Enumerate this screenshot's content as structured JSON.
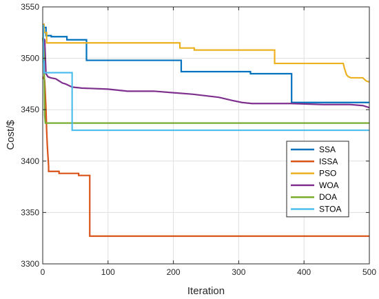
{
  "chart_data": {
    "type": "line",
    "title": "",
    "xlabel": "Iteration",
    "ylabel": "Cost/$",
    "xlim": [
      0,
      500
    ],
    "ylim": [
      3300,
      3550
    ],
    "xticks": [
      0,
      100,
      200,
      300,
      400,
      500
    ],
    "yticks": [
      3300,
      3350,
      3400,
      3450,
      3500,
      3550
    ],
    "grid": true,
    "legend_position": "right",
    "series": [
      {
        "name": "SSA",
        "color": "#0072BD",
        "x": [
          0,
          2,
          2,
          5,
          5,
          13,
          13,
          37,
          37,
          67,
          67,
          212,
          212,
          318,
          318,
          381,
          381,
          500
        ],
        "y": [
          3533,
          3533,
          3530,
          3530,
          3522,
          3522,
          3521,
          3521,
          3518,
          3518,
          3498,
          3498,
          3487,
          3487,
          3485,
          3485,
          3457,
          3457
        ]
      },
      {
        "name": "ISSA",
        "color": "#D95319",
        "x": [
          0,
          2,
          3,
          4,
          5,
          6,
          7,
          9,
          9,
          25,
          25,
          55,
          55,
          72,
          72,
          500
        ],
        "y": [
          3480,
          3482,
          3478,
          3465,
          3450,
          3430,
          3415,
          3395,
          3390,
          3390,
          3388,
          3388,
          3386,
          3386,
          3327,
          3327
        ]
      },
      {
        "name": "PSO",
        "color": "#EDB120",
        "x": [
          0,
          2,
          2,
          6,
          6,
          210,
          210,
          232,
          232,
          355,
          355,
          460,
          462,
          465,
          468,
          472,
          490,
          495,
          500
        ],
        "y": [
          3533,
          3533,
          3525,
          3525,
          3515,
          3515,
          3510,
          3510,
          3508,
          3508,
          3495,
          3495,
          3490,
          3484,
          3482,
          3481,
          3481,
          3478,
          3477
        ]
      },
      {
        "name": "WOA",
        "color": "#7E2F8E",
        "x": [
          0,
          3,
          5,
          8,
          12,
          20,
          25,
          30,
          35,
          45,
          60,
          100,
          130,
          170,
          230,
          270,
          290,
          305,
          320,
          380,
          430,
          470,
          490,
          500
        ],
        "y": [
          3520,
          3518,
          3485,
          3482,
          3481,
          3480,
          3478,
          3476,
          3475,
          3472,
          3471,
          3470,
          3468,
          3468,
          3465,
          3462,
          3459,
          3457,
          3456,
          3456,
          3455,
          3455,
          3454,
          3452
        ]
      },
      {
        "name": "DOA",
        "color": "#77AC30",
        "x": [
          0,
          2,
          3,
          4,
          500
        ],
        "y": [
          3520,
          3505,
          3445,
          3437,
          3437
        ]
      },
      {
        "name": "STOA",
        "color": "#4DBEEE",
        "x": [
          0,
          1,
          1,
          2,
          2,
          45,
          45,
          500
        ],
        "y": [
          3532,
          3532,
          3497,
          3497,
          3486,
          3486,
          3430,
          3430
        ]
      }
    ]
  }
}
